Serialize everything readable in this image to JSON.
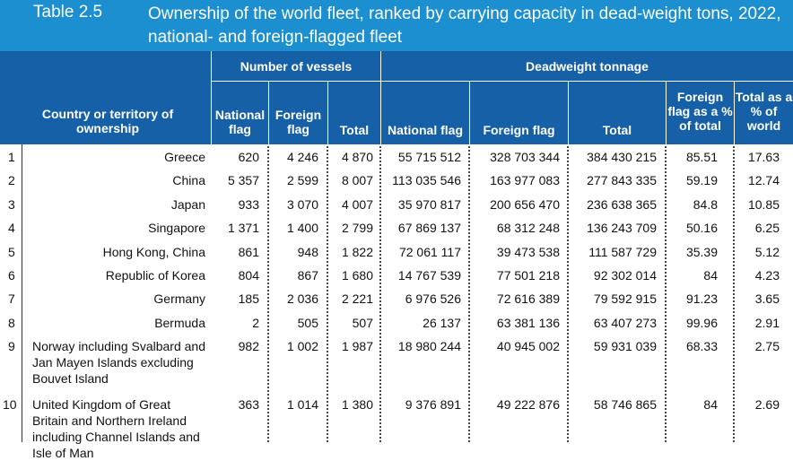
{
  "title": {
    "number": "Table 2.5",
    "text": "Ownership of the world fleet, ranked by carrying capacity in dead-weight tons, 2022, national- and foreign-flagged fleet"
  },
  "header": {
    "country": "Country or territory of ownership",
    "group_vessels": "Number of vessels",
    "group_dwt": "Deadweight tonnage",
    "v_national": "National flag",
    "v_foreign": "Foreign flag",
    "v_total": "Total",
    "d_national": "National flag",
    "d_foreign": "Foreign flag",
    "d_total": "Total",
    "d_foreign_pct": "Foreign flag as a % of total",
    "d_world_pct": "Total as a % of world"
  },
  "rows": [
    {
      "rank": "1",
      "country": "Greece",
      "v_nat": "620",
      "v_for": "4 246",
      "v_tot": "4 870",
      "d_nat": "55 715 512",
      "d_for": "328 703 344",
      "d_tot": "384 430 215",
      "pct_for": "85.51",
      "pct_world": "17.63"
    },
    {
      "rank": "2",
      "country": "China",
      "v_nat": "5 357",
      "v_for": "2 599",
      "v_tot": "8 007",
      "d_nat": "113 035 546",
      "d_for": "163 977 083",
      "d_tot": "277 843 335",
      "pct_for": "59.19",
      "pct_world": "12.74"
    },
    {
      "rank": "3",
      "country": "Japan",
      "v_nat": "933",
      "v_for": "3 070",
      "v_tot": "4 007",
      "d_nat": "35 970 817",
      "d_for": "200 656 470",
      "d_tot": "236 638 365",
      "pct_for": "84.8",
      "pct_world": "10.85"
    },
    {
      "rank": "4",
      "country": "Singapore",
      "v_nat": "1 371",
      "v_for": "1 400",
      "v_tot": "2 799",
      "d_nat": "67 869 137",
      "d_for": "68 312 248",
      "d_tot": "136 243 709",
      "pct_for": "50.16",
      "pct_world": "6.25"
    },
    {
      "rank": "5",
      "country": "Hong Kong, China",
      "v_nat": "861",
      "v_for": "948",
      "v_tot": "1 822",
      "d_nat": "72 061 117",
      "d_for": "39 473 538",
      "d_tot": "111 587 729",
      "pct_for": "35.39",
      "pct_world": "5.12"
    },
    {
      "rank": "6",
      "country": "Republic of Korea",
      "v_nat": "804",
      "v_for": "867",
      "v_tot": "1 680",
      "d_nat": "14 767 539",
      "d_for": "77 501 218",
      "d_tot": "92 302 014",
      "pct_for": "84",
      "pct_world": "4.23"
    },
    {
      "rank": "7",
      "country": "Germany",
      "v_nat": "185",
      "v_for": "2 036",
      "v_tot": "2 221",
      "d_nat": "6 976 526",
      "d_for": "72 616 389",
      "d_tot": "79 592 915",
      "pct_for": "91.23",
      "pct_world": "3.65"
    },
    {
      "rank": "8",
      "country": "Bermuda",
      "v_nat": "2",
      "v_for": "505",
      "v_tot": "507",
      "d_nat": "26 137",
      "d_for": "63 381 136",
      "d_tot": "63 407 273",
      "pct_for": "99.96",
      "pct_world": "2.91"
    },
    {
      "rank": "9",
      "country": "Norway including Svalbard and Jan Mayen Islands excluding Bouvet Island",
      "v_nat": "982",
      "v_for": "1 002",
      "v_tot": "1 987",
      "d_nat": "18 980 244",
      "d_for": "40 945 002",
      "d_tot": "59 931 039",
      "pct_for": "68.33",
      "pct_world": "2.75"
    },
    {
      "rank": "10",
      "country": "United Kingdom of Great Britain and Northern Ireland including Channel Islands and Isle of Man",
      "v_nat": "363",
      "v_for": "1 014",
      "v_tot": "1 380",
      "d_nat": "9 376 891",
      "d_for": "49 222 876",
      "d_tot": "58 746 865",
      "pct_for": "84",
      "pct_world": "2.69"
    }
  ]
}
